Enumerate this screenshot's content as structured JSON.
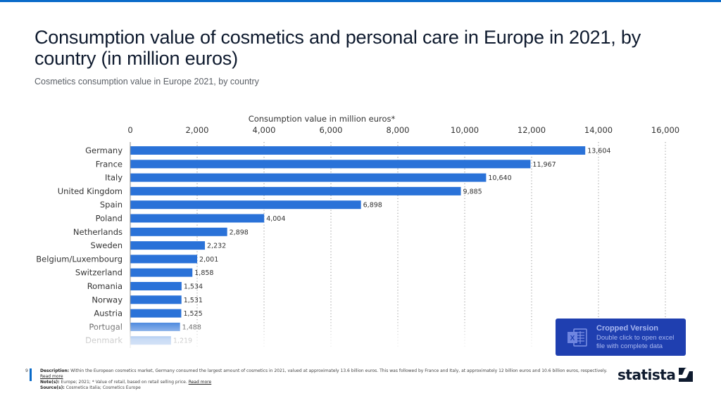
{
  "header": {
    "title": "Consumption value of cosmetics and personal care in Europe in 2021, by country (in million euros)",
    "subtitle": "Cosmetics consumption value in Europe 2021, by country"
  },
  "colors": {
    "bar": "#2a72d8",
    "accent": "#0a6bc9",
    "excel_box": "#1f3fb0"
  },
  "chart_data": {
    "type": "bar",
    "orientation": "horizontal",
    "title": "Consumption value of cosmetics and personal care in Europe in 2021, by country (in million euros)",
    "xlabel": "Consumption value in million euros*",
    "ylabel": "",
    "xlim": [
      0,
      16000
    ],
    "x_ticks": [
      0,
      2000,
      4000,
      6000,
      8000,
      10000,
      12000,
      14000,
      16000
    ],
    "x_tick_labels": [
      "0",
      "2,000",
      "4,000",
      "6,000",
      "8,000",
      "10,000",
      "12,000",
      "14,000",
      "16,000"
    ],
    "axis_position": "top",
    "grid": true,
    "grid_style": "dotted",
    "categories": [
      "Germany",
      "France",
      "Italy",
      "United Kingdom",
      "Spain",
      "Poland",
      "Netherlands",
      "Sweden",
      "Belgium/Luxembourg",
      "Switzerland",
      "Romania",
      "Norway",
      "Austria",
      "Portugal",
      "Denmark"
    ],
    "values": [
      13604,
      11967,
      10640,
      9885,
      6898,
      4004,
      2898,
      2232,
      2001,
      1858,
      1534,
      1531,
      1525,
      1488,
      1219
    ],
    "value_labels": [
      "13,604",
      "11,967",
      "10,640",
      "9,885",
      "6,898",
      "4,004",
      "2,898",
      "2,232",
      "2,001",
      "1,858",
      "1,534",
      "1,531",
      "1,525",
      "1,488",
      "1,219"
    ],
    "cropped": true
  },
  "excel_notice": {
    "icon": "excel-icon",
    "heading": "Cropped Version",
    "line1": "Double click to open excel",
    "line2": "file with complete data"
  },
  "footer": {
    "page_number": "9",
    "description_label": "Description:",
    "description": "Within the European cosmetics market, Germany consumed the largest amount of cosmetics in 2021, valued at approximately 13.6 billion euros. This was followed by France and Italy, at approximately 12 billion euros and 10.6 billion euros, respectively.",
    "read_more_1": "Read more",
    "notes_label": "Note(s):",
    "notes": "Europe; 2021; * Value of retail, based on retail selling price.",
    "read_more_2": "Read more",
    "sources_label": "Source(s):",
    "sources": "Cosmetica Italia; Cosmetics Europe"
  },
  "logo": {
    "text": "statista"
  }
}
